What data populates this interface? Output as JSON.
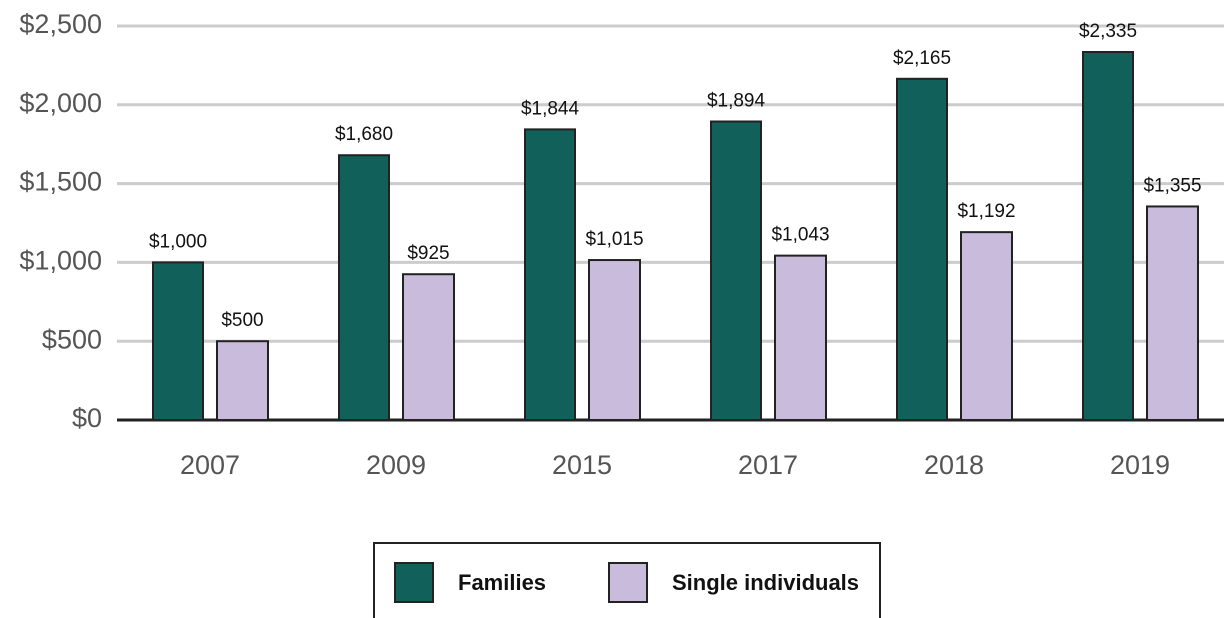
{
  "chart_data": {
    "type": "bar",
    "categories": [
      "2007",
      "2009",
      "2015",
      "2017",
      "2018",
      "2019"
    ],
    "series": [
      {
        "name": "Families",
        "color": "#12605a",
        "values": [
          1000,
          1680,
          1844,
          1894,
          2165,
          2335
        ],
        "value_labels": [
          "$1,000",
          "$1,680",
          "$1,844",
          "$1,894",
          "$2,165",
          "$2,335"
        ]
      },
      {
        "name": "Single individuals",
        "color": "#c9bbdb",
        "values": [
          500,
          925,
          1015,
          1043,
          1192,
          1355
        ],
        "value_labels": [
          "$500",
          "$925",
          "$1,015",
          "$1,043",
          "$1,192",
          "$1,355"
        ]
      }
    ],
    "ylim": [
      0,
      2500
    ],
    "yticks": [
      {
        "value": 0,
        "label": "$0"
      },
      {
        "value": 500,
        "label": "$500"
      },
      {
        "value": 1000,
        "label": "$1,000"
      },
      {
        "value": 1500,
        "label": "$1,500"
      },
      {
        "value": 2000,
        "label": "$2,000"
      },
      {
        "value": 2500,
        "label": "$2,500"
      }
    ],
    "grid": true,
    "legend": "bottom"
  }
}
